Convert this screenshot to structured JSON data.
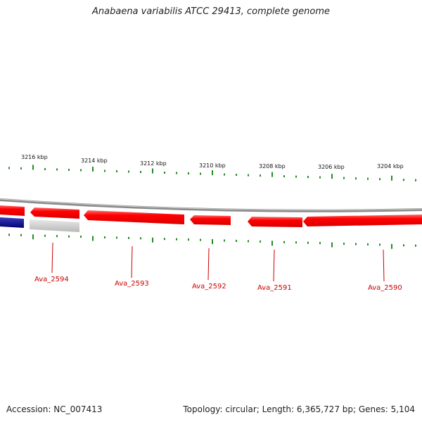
{
  "title": "Anabaena variabilis ATCC 29413, complete genome",
  "footer": {
    "accession": "Accession: NC_007413",
    "topology": "Topology: circular; Length: 6,365,727 bp; Genes: 5,104"
  },
  "colors": {
    "backbone": "#8a8a8a",
    "gene_reverse": "#ff0000",
    "gene_forward": "#000080",
    "gene_other": "#c0c0c0",
    "tick": "#228b22",
    "label_line": "#cc0000"
  },
  "kbp_labels": [
    "3216 kbp",
    "3214 kbp",
    "3212 kbp",
    "3210 kbp",
    "3208 kbp",
    "3206 kbp",
    "3204 kbp"
  ],
  "genes": [
    {
      "label": "Ava_2594",
      "color": "red",
      "strand": "reverse"
    },
    {
      "label": "Ava_2593",
      "color": "red",
      "strand": "reverse"
    },
    {
      "label": "Ava_2592",
      "color": "red",
      "strand": "reverse"
    },
    {
      "label": "Ava_2591",
      "color": "red",
      "strand": "reverse"
    },
    {
      "label": "Ava_2590",
      "color": "red",
      "strand": "reverse"
    }
  ]
}
